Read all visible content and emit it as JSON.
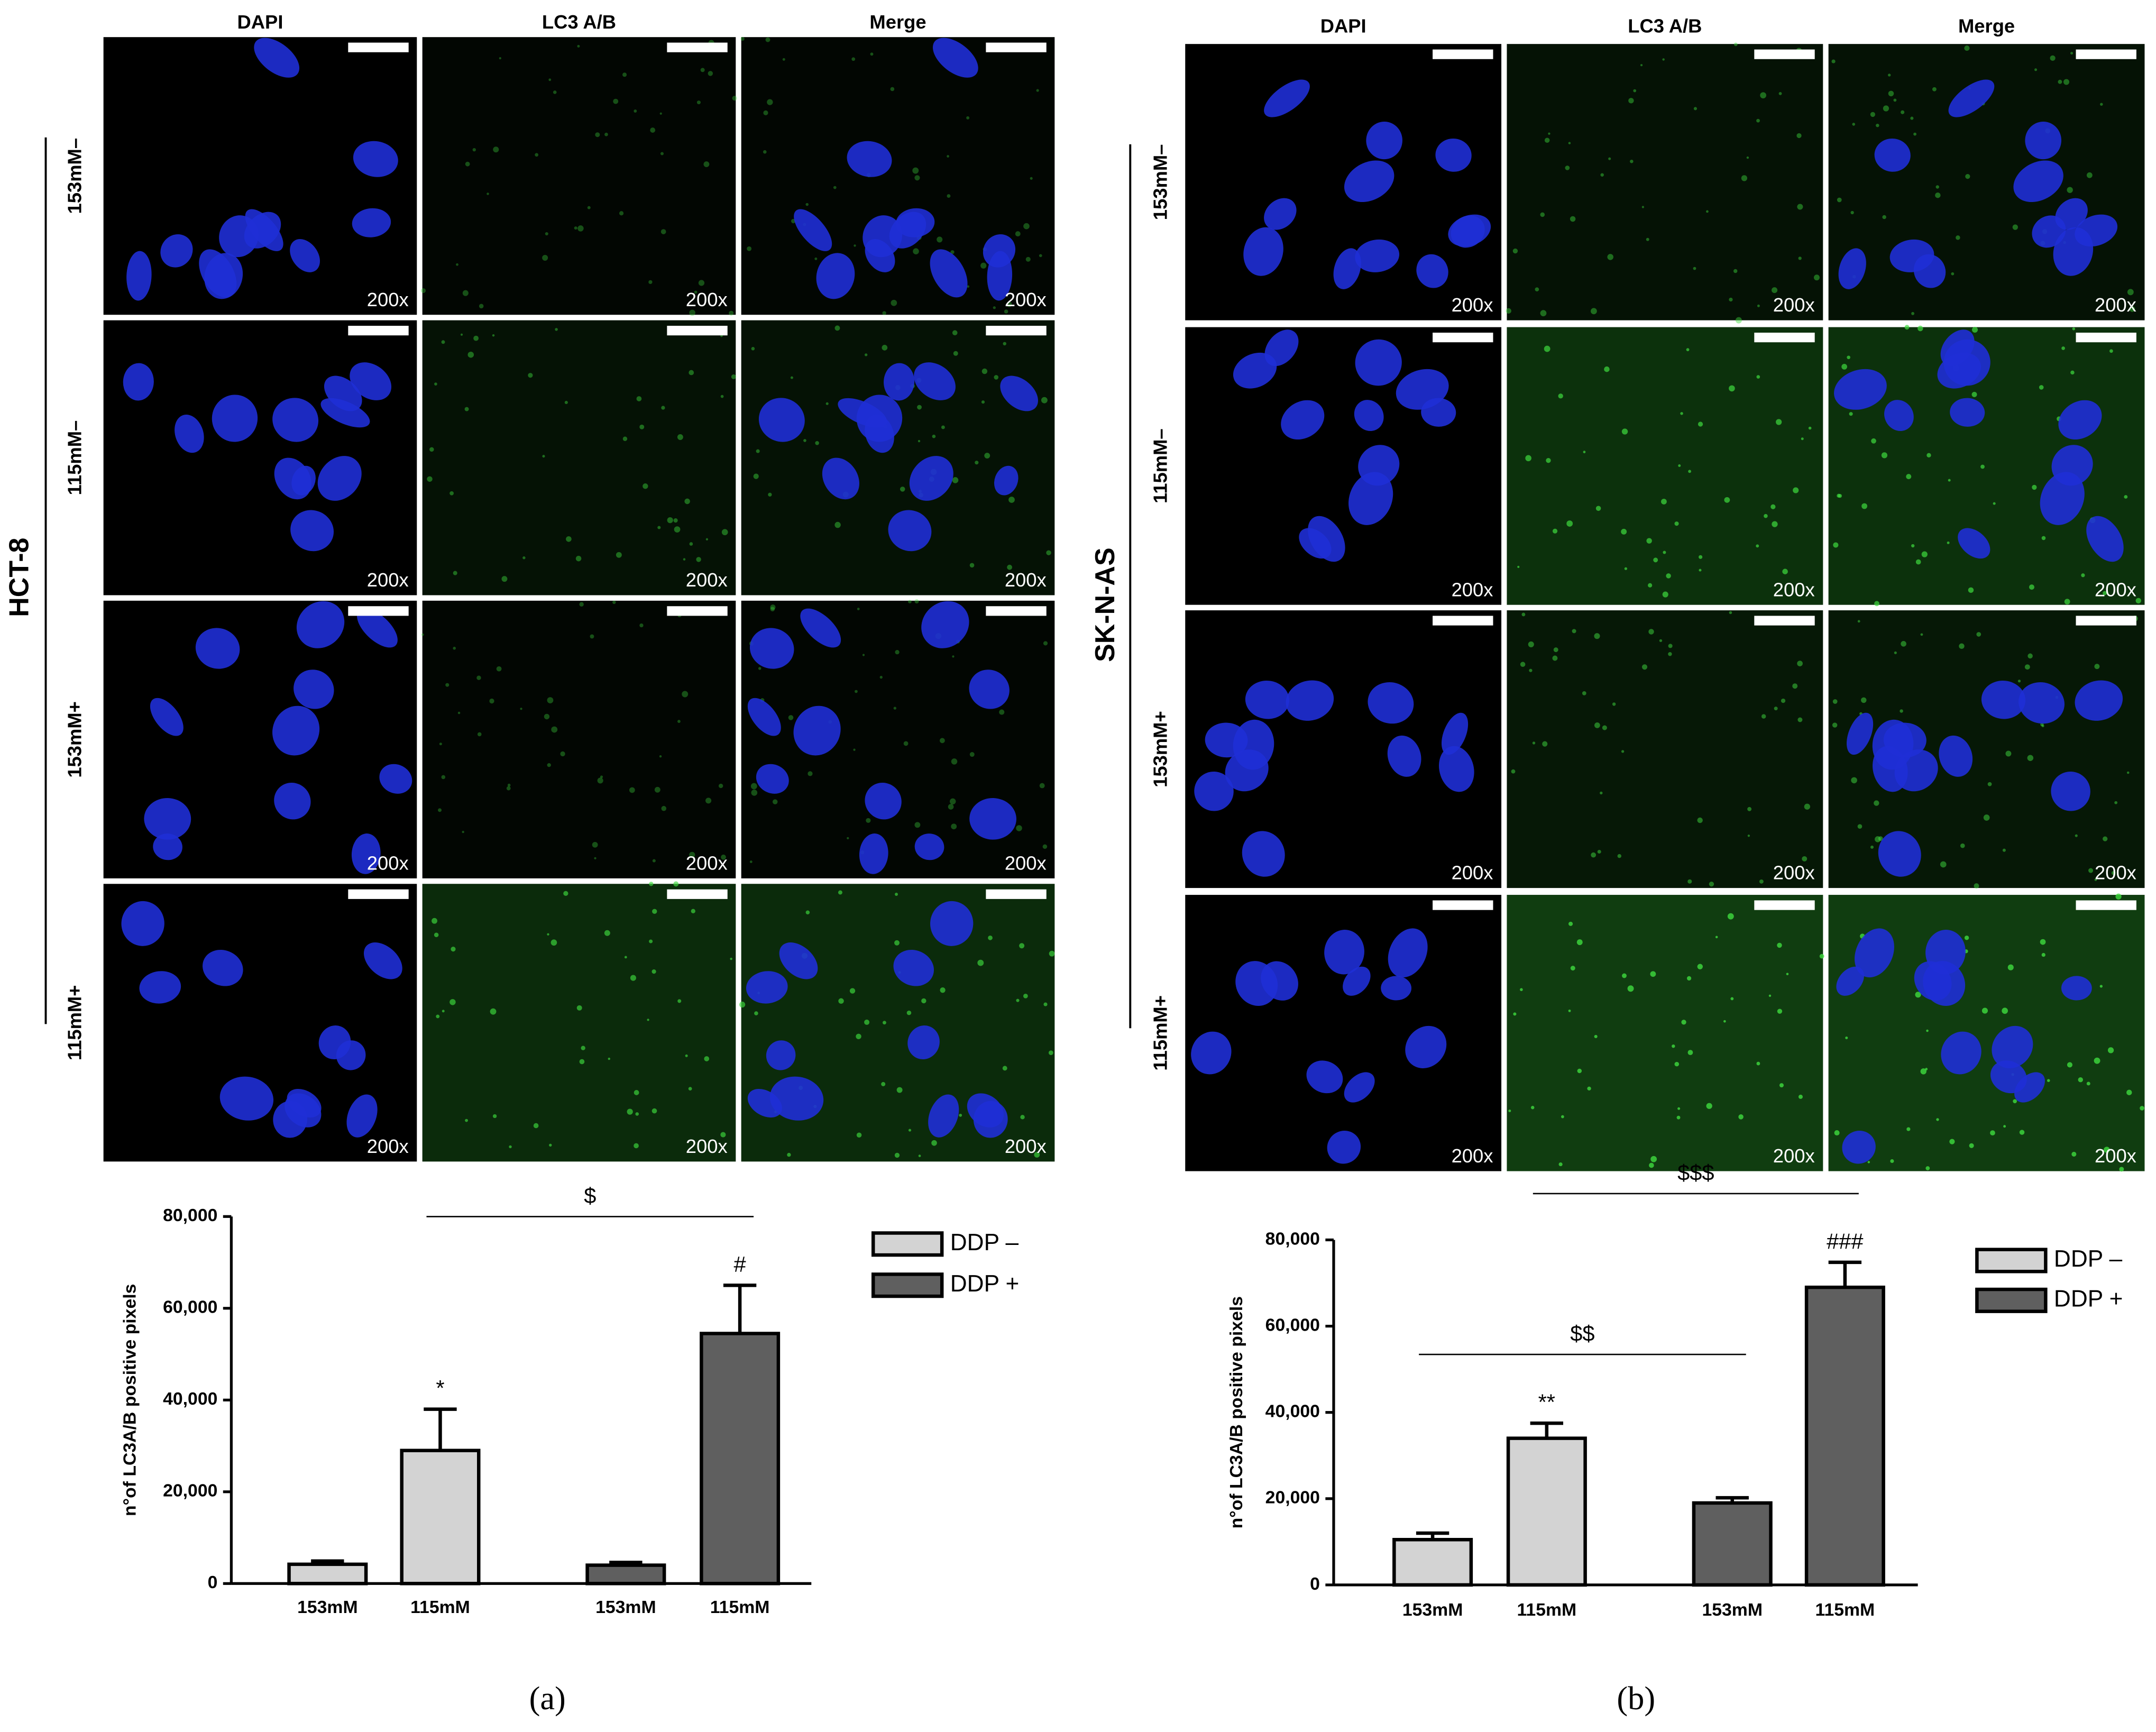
{
  "figure": {
    "panels": [
      {
        "label": "(a)",
        "cell_line": "HCT-8",
        "columns": [
          "DAPI",
          "LC3 A/B",
          "Merge"
        ],
        "rows": [
          "153mM–",
          "115mM–",
          "153mM+",
          "115mM+"
        ],
        "magnification": "200x"
      },
      {
        "label": "(b)",
        "cell_line": "SK-N-AS",
        "columns": [
          "DAPI",
          "LC3 A/B",
          "Merge"
        ],
        "rows": [
          "153mM–",
          "115mM–",
          "153mM+",
          "115mM+"
        ],
        "magnification": "200x"
      }
    ]
  },
  "chart_data": [
    {
      "type": "bar",
      "ylabel": "n°of LC3A/B positive pixels",
      "categories": [
        "153mM",
        "115mM",
        "153mM",
        "115mM"
      ],
      "series": [
        {
          "name": "DDP –",
          "color": "#d3d3d3",
          "values": [
            4200,
            29000,
            null,
            null
          ],
          "errors": [
            700,
            9000,
            null,
            null
          ],
          "annotations": [
            null,
            "*",
            null,
            null
          ]
        },
        {
          "name": "DDP +",
          "color": "#5f5f5f",
          "values": [
            null,
            null,
            4000,
            54500
          ],
          "errors": [
            null,
            null,
            600,
            10500
          ],
          "annotations": [
            null,
            null,
            null,
            "#"
          ]
        }
      ],
      "brackets": [
        {
          "text": "$",
          "from": 1,
          "to": 3
        }
      ],
      "ylim": [
        0,
        80000
      ],
      "yticks": [
        0,
        {
          "value": 20000,
          "label": "20,000"
        },
        {
          "value": 40000,
          "label": "40,000"
        },
        {
          "value": 60000,
          "label": "60,000"
        },
        {
          "value": 80000,
          "label": "80,000"
        }
      ]
    },
    {
      "type": "bar",
      "ylabel": "n°of LC3A/B positive pixels",
      "categories": [
        "153mM",
        "115mM",
        "153mM",
        "115mM"
      ],
      "series": [
        {
          "name": "DDP –",
          "color": "#d3d3d3",
          "values": [
            10500,
            34000,
            null,
            null
          ],
          "errors": [
            1500,
            3500,
            null,
            null
          ],
          "annotations": [
            null,
            "**",
            null,
            null
          ]
        },
        {
          "name": "DDP +",
          "color": "#5f5f5f",
          "values": [
            null,
            null,
            19000,
            69000
          ],
          "errors": [
            null,
            null,
            1200,
            5800
          ],
          "annotations": [
            null,
            null,
            null,
            "###"
          ]
        }
      ],
      "brackets": [
        {
          "text": "$$",
          "from": 0,
          "to": 2
        },
        {
          "text": "$$$",
          "from": 1,
          "to": 3
        }
      ],
      "ylim": [
        0,
        80000
      ],
      "yticks": [
        0,
        {
          "value": 20000,
          "label": "20,000"
        },
        {
          "value": 40000,
          "label": "40,000"
        },
        {
          "value": 60000,
          "label": "60,000"
        },
        {
          "value": 80000,
          "label": "80,000"
        }
      ]
    }
  ]
}
